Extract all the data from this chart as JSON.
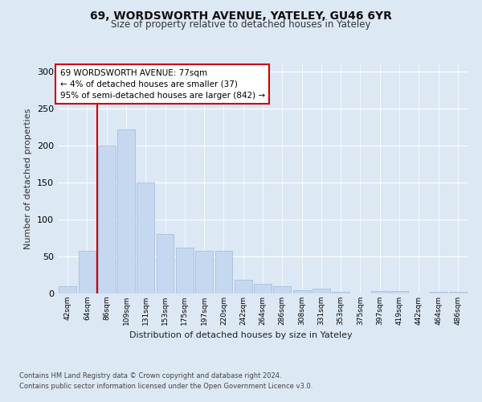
{
  "title1": "69, WORDSWORTH AVENUE, YATELEY, GU46 6YR",
  "title2": "Size of property relative to detached houses in Yateley",
  "xlabel": "Distribution of detached houses by size in Yateley",
  "ylabel": "Number of detached properties",
  "categories": [
    "42sqm",
    "64sqm",
    "86sqm",
    "109sqm",
    "131sqm",
    "153sqm",
    "175sqm",
    "197sqm",
    "220sqm",
    "242sqm",
    "264sqm",
    "286sqm",
    "308sqm",
    "331sqm",
    "353sqm",
    "375sqm",
    "397sqm",
    "419sqm",
    "442sqm",
    "464sqm",
    "486sqm"
  ],
  "values": [
    10,
    58,
    200,
    222,
    150,
    80,
    62,
    58,
    58,
    18,
    13,
    10,
    4,
    6,
    2,
    0,
    3,
    3,
    0,
    2,
    2
  ],
  "bar_color": "#c5d8f0",
  "bar_edge_color": "#a0b8d8",
  "vline_color": "#cc0000",
  "annotation_line1": "69 WORDSWORTH AVENUE: 77sqm",
  "annotation_line2": "← 4% of detached houses are smaller (37)",
  "annotation_line3": "95% of semi-detached houses are larger (842) →",
  "annotation_box_color": "#ffffff",
  "annotation_box_edge": "#cc0000",
  "ylim": [
    0,
    310
  ],
  "yticks": [
    0,
    50,
    100,
    150,
    200,
    250,
    300
  ],
  "footer1": "Contains HM Land Registry data © Crown copyright and database right 2024.",
  "footer2": "Contains public sector information licensed under the Open Government Licence v3.0.",
  "bg_color": "#dde8f5",
  "plot_bg_color": "#dde8f5"
}
